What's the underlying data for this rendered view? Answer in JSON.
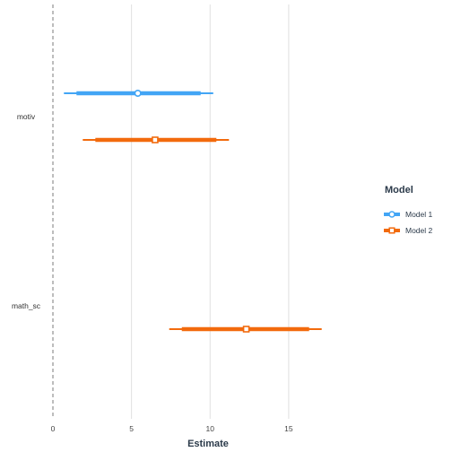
{
  "chart_data": {
    "type": "forest-plot",
    "xlabel": "Estimate",
    "ylabel": "",
    "xlim": [
      -0.4,
      19.0
    ],
    "x_ticks": [
      0,
      5,
      10,
      15
    ],
    "x_tick_labels": [
      "0",
      "5",
      "10",
      "15"
    ],
    "categories": [
      "motiv",
      "math_sc"
    ],
    "reference_line": {
      "x": 0,
      "style": "dashed",
      "color": "#999999"
    },
    "grid": true,
    "legend": {
      "title": "Model",
      "position": "right"
    },
    "series": [
      {
        "name": "Model 1",
        "color": "#42a5f5",
        "marker": "circle",
        "points": [
          {
            "term": "motiv",
            "estimate": 5.4,
            "inner_ci": [
              1.5,
              9.4
            ],
            "outer_ci": [
              0.7,
              10.2
            ]
          }
        ]
      },
      {
        "name": "Model 2",
        "color": "#f26a0d",
        "marker": "square",
        "points": [
          {
            "term": "motiv",
            "estimate": 6.5,
            "inner_ci": [
              2.7,
              10.4
            ],
            "outer_ci": [
              1.9,
              11.2
            ]
          },
          {
            "term": "math_sc",
            "estimate": 12.3,
            "inner_ci": [
              8.2,
              16.3
            ],
            "outer_ci": [
              7.4,
              17.1
            ]
          }
        ]
      }
    ]
  }
}
